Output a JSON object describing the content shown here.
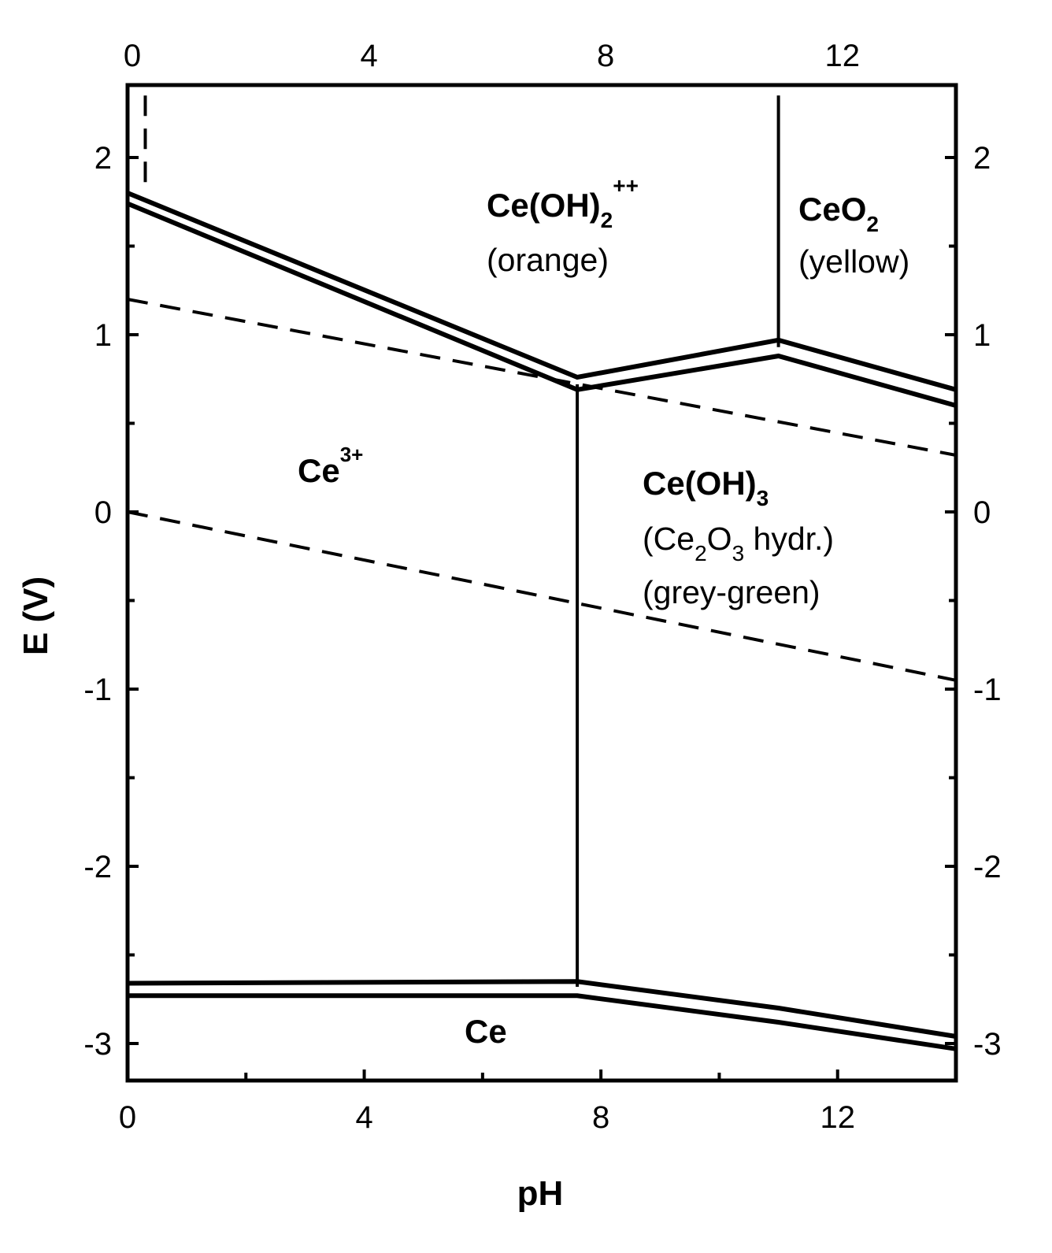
{
  "chart_data": {
    "type": "line",
    "xlabel": "pH",
    "ylabel": "E (V)",
    "xlim": [
      0,
      14
    ],
    "ylim": [
      -3.2,
      2.4
    ],
    "x_ticks_bottom": [
      0,
      4,
      8,
      12
    ],
    "x_ticks_top": [
      0,
      4,
      8,
      12
    ],
    "y_ticks_left": [
      -3,
      -2,
      -1,
      0,
      1,
      2
    ],
    "y_ticks_right": [
      -3,
      -2,
      -1,
      0,
      1,
      2
    ],
    "grid": false,
    "boundaries": [
      {
        "style": "double",
        "points": [
          [
            0,
            1.8
          ],
          [
            7.6,
            0.76
          ],
          [
            11,
            0.97
          ],
          [
            14,
            0.69
          ]
        ]
      },
      {
        "style": "double",
        "points": [
          [
            0,
            1.74
          ],
          [
            7.6,
            0.69
          ],
          [
            11,
            0.88
          ],
          [
            14,
            0.6
          ]
        ]
      },
      {
        "style": "single",
        "points": [
          [
            7.6,
            0.72
          ],
          [
            7.6,
            -2.68
          ]
        ]
      },
      {
        "style": "single",
        "points": [
          [
            11,
            2.35
          ],
          [
            11,
            0.93
          ]
        ]
      },
      {
        "style": "double",
        "points": [
          [
            0,
            -2.66
          ],
          [
            7.6,
            -2.65
          ],
          [
            11,
            -2.8
          ],
          [
            14,
            -2.96
          ]
        ]
      },
      {
        "style": "double",
        "points": [
          [
            0,
            -2.73
          ],
          [
            7.6,
            -2.73
          ],
          [
            11,
            -2.88
          ],
          [
            14,
            -3.03
          ]
        ]
      }
    ],
    "water_lines": [
      {
        "style": "dashed",
        "points": [
          [
            0,
            1.2
          ],
          [
            14,
            0.32
          ]
        ]
      },
      {
        "style": "dashed",
        "points": [
          [
            0,
            0.0
          ],
          [
            14,
            -0.95
          ]
        ]
      },
      {
        "style": "dashed",
        "points": [
          [
            0.3,
            2.35
          ],
          [
            0.3,
            1.8
          ]
        ]
      }
    ],
    "regions": {
      "ce_oh2": {
        "main": "Ce(OH)",
        "sub": "2",
        "sup": "++",
        "note": "(orange)"
      },
      "ceo2": {
        "main": "CeO",
        "sub": "2",
        "note": "(yellow)"
      },
      "ce3": {
        "main": "Ce",
        "sup": "3+"
      },
      "ce_oh3": {
        "main": "Ce(OH)",
        "sub": "3",
        "note1_a": "(Ce",
        "note1_sub1": "2",
        "note1_b": "O",
        "note1_sub2": "3",
        "note1_c": " hydr.)",
        "note2": "(grey-green)"
      },
      "ce": {
        "main": "Ce"
      }
    }
  }
}
